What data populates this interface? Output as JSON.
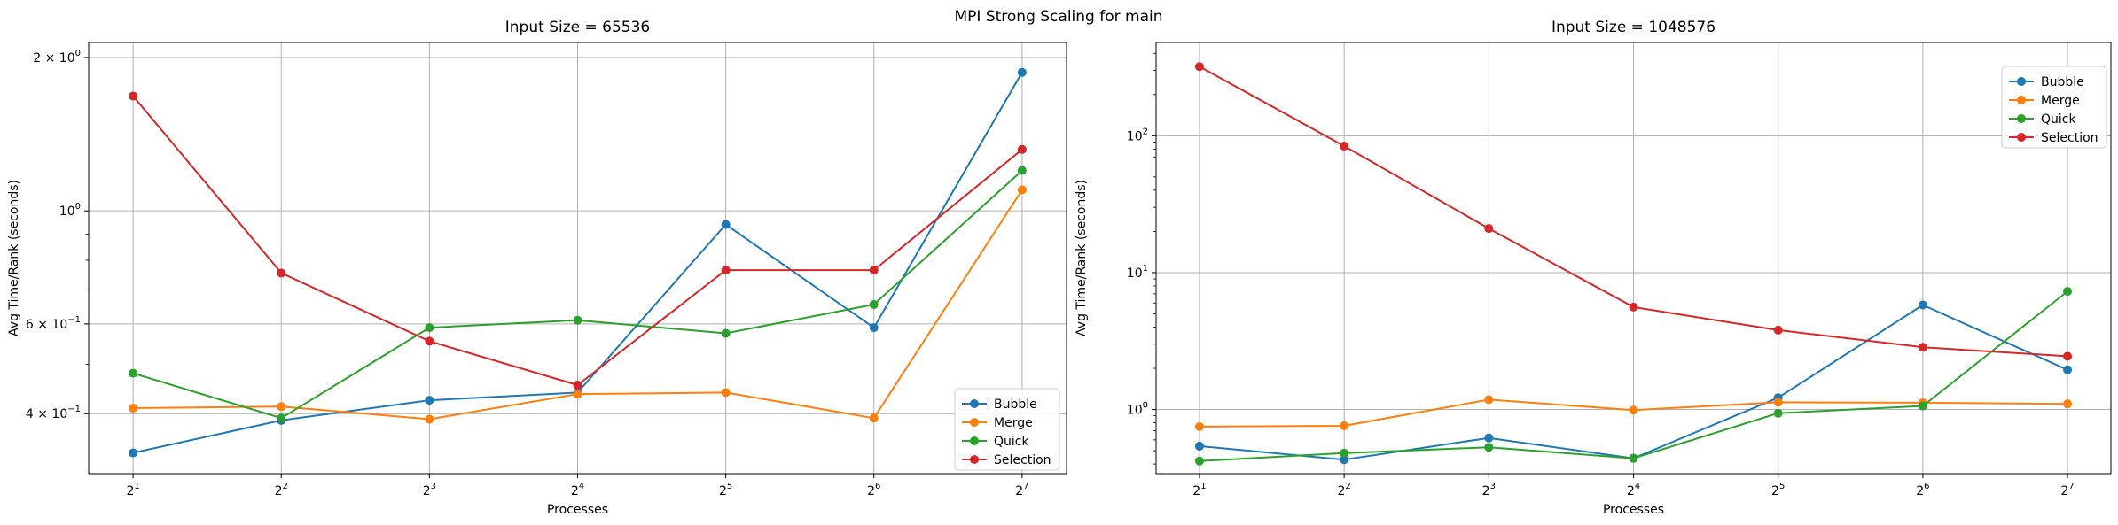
{
  "suptitle": "MPI Strong Scaling for main",
  "colors": {
    "Bubble": "#1f77b4",
    "Merge": "#ff7f0e",
    "Quick": "#2ca02c",
    "Selection": "#d62728"
  },
  "chart_data": [
    {
      "type": "line",
      "title": "Input Size = 65536",
      "xlabel": "Processes",
      "ylabel": "Avg Time/Rank (seconds)",
      "x": [
        2,
        4,
        8,
        16,
        32,
        64,
        128
      ],
      "x_ticks": [
        {
          "base": "2",
          "exp": "1"
        },
        {
          "base": "2",
          "exp": "2"
        },
        {
          "base": "2",
          "exp": "3"
        },
        {
          "base": "2",
          "exp": "4"
        },
        {
          "base": "2",
          "exp": "5"
        },
        {
          "base": "2",
          "exp": "6"
        },
        {
          "base": "2",
          "exp": "7"
        }
      ],
      "yscale": "log",
      "ylim": [
        0.305,
        2.14
      ],
      "y_ticks": [
        {
          "value": 0.4,
          "mant": "4",
          "exp": "−1"
        },
        {
          "value": 0.6,
          "mant": "6",
          "exp": "−1"
        },
        {
          "value": 1.0,
          "mant": "",
          "exp": "0"
        },
        {
          "value": 2.0,
          "mant": "2",
          "exp": "0"
        }
      ],
      "grid": true,
      "legend": "lower-right",
      "series": [
        {
          "name": "Bubble",
          "values": [
            0.335,
            0.388,
            0.425,
            0.44,
            0.94,
            0.59,
            1.87
          ]
        },
        {
          "name": "Merge",
          "values": [
            0.41,
            0.413,
            0.39,
            0.437,
            0.44,
            0.392,
            1.1
          ]
        },
        {
          "name": "Quick",
          "values": [
            0.48,
            0.392,
            0.59,
            0.61,
            0.575,
            0.655,
            1.2
          ]
        },
        {
          "name": "Selection",
          "values": [
            1.68,
            0.755,
            0.555,
            0.455,
            0.765,
            0.765,
            1.32
          ]
        }
      ]
    },
    {
      "type": "line",
      "title": "Input Size = 1048576",
      "xlabel": "Processes",
      "ylabel": "Avg Time/Rank (seconds)",
      "x": [
        2,
        4,
        8,
        16,
        32,
        64,
        128
      ],
      "x_ticks": [
        {
          "base": "2",
          "exp": "1"
        },
        {
          "base": "2",
          "exp": "2"
        },
        {
          "base": "2",
          "exp": "3"
        },
        {
          "base": "2",
          "exp": "4"
        },
        {
          "base": "2",
          "exp": "5"
        },
        {
          "base": "2",
          "exp": "6"
        },
        {
          "base": "2",
          "exp": "7"
        }
      ],
      "yscale": "log",
      "ylim": [
        0.34,
        480
      ],
      "y_ticks": [
        {
          "value": 1,
          "mant": "10",
          "exp": "0"
        },
        {
          "value": 10,
          "mant": "10",
          "exp": "1"
        },
        {
          "value": 100,
          "mant": "10",
          "exp": "2"
        }
      ],
      "grid": true,
      "legend": "upper-right",
      "series": [
        {
          "name": "Bubble",
          "values": [
            0.54,
            0.43,
            0.62,
            0.44,
            1.22,
            5.8,
            1.95
          ]
        },
        {
          "name": "Merge",
          "values": [
            0.75,
            0.76,
            1.18,
            0.99,
            1.13,
            1.12,
            1.1
          ]
        },
        {
          "name": "Quick",
          "values": [
            0.42,
            0.48,
            0.53,
            0.44,
            0.94,
            1.06,
            7.3
          ]
        },
        {
          "name": "Selection",
          "values": [
            320,
            84,
            21,
            5.6,
            3.8,
            2.85,
            2.45
          ]
        }
      ]
    }
  ]
}
